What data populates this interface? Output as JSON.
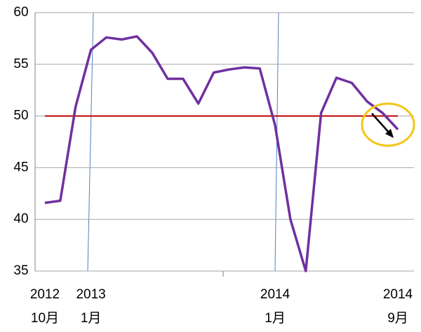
{
  "chart_data": {
    "type": "line",
    "categories": [
      [
        "2012",
        "10月"
      ],
      null,
      null,
      [
        "2013",
        "1月"
      ],
      null,
      null,
      null,
      null,
      null,
      null,
      null,
      null,
      null,
      null,
      null,
      [
        "2014",
        "1月"
      ],
      null,
      null,
      null,
      null,
      null,
      null,
      null,
      [
        "2014",
        "9月"
      ]
    ],
    "series": [
      {
        "color": "#7030a0",
        "values": [
          41.6,
          41.8,
          50.9,
          56.4,
          57.6,
          57.4,
          57.7,
          56.1,
          53.6,
          53.6,
          51.2,
          54.2,
          54.5,
          54.7,
          54.6,
          49.1,
          40.0,
          35.0,
          50.3,
          53.7,
          53.2,
          51.4,
          50.3,
          48.7
        ]
      }
    ],
    "reference_line": {
      "value": 50,
      "color": "#c00000"
    },
    "ylim": [
      35,
      60
    ],
    "yticks": [
      35,
      40,
      45,
      50,
      55,
      60
    ],
    "grid": true
  }
}
